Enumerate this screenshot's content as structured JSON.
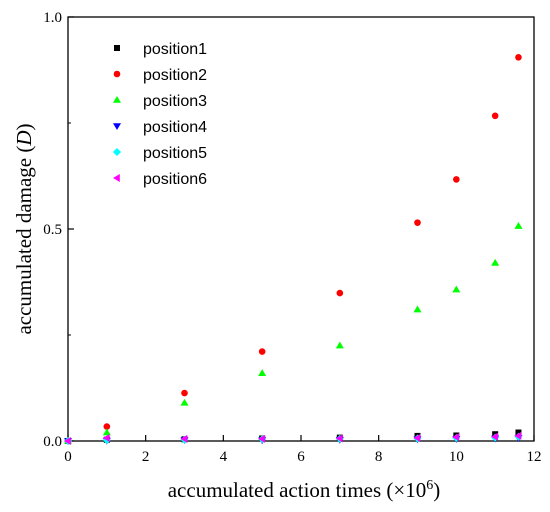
{
  "chart_data": {
    "type": "scatter",
    "xlabel": "accumulated action times (×10",
    "xlabel_exp": "6",
    "xlabel_close": ")",
    "ylabel": "accumulated damage (",
    "ylabel_var": "D",
    "ylabel_close": ")",
    "xlim": [
      0,
      12
    ],
    "ylim": [
      0,
      1.0
    ],
    "xticks": [
      0,
      2,
      4,
      6,
      8,
      10,
      12
    ],
    "xtick_labels": [
      "0",
      "2",
      "4",
      "6",
      "8",
      "10",
      "12"
    ],
    "yticks": [
      0,
      0.5,
      1.0
    ],
    "ytick_labels": [
      "0.0",
      "0.5",
      "1.0"
    ],
    "grid": false,
    "legend_position": "top-left",
    "x": [
      0,
      1,
      3,
      5,
      7,
      9,
      10,
      11,
      11.6
    ],
    "series": [
      {
        "name": "position1",
        "marker": "square",
        "color": "#000000",
        "values": [
          0,
          0.003,
          0.004,
          0.006,
          0.008,
          0.012,
          0.013,
          0.016,
          0.02
        ]
      },
      {
        "name": "position2",
        "marker": "circle",
        "color": "#ff0000",
        "values": [
          0,
          0.034,
          0.113,
          0.211,
          0.349,
          0.515,
          0.617,
          0.767,
          0.905
        ]
      },
      {
        "name": "position3",
        "marker": "triangle-up",
        "color": "#00ff00",
        "values": [
          0,
          0.02,
          0.09,
          0.16,
          0.225,
          0.31,
          0.357,
          0.42,
          0.507
        ]
      },
      {
        "name": "position4",
        "marker": "triangle-down",
        "color": "#0000ff",
        "values": [
          0,
          0.001,
          0.002,
          0.002,
          0.003,
          0.004,
          0.005,
          0.006,
          0.007
        ]
      },
      {
        "name": "position5",
        "marker": "diamond",
        "color": "#00ffff",
        "values": [
          0,
          0.002,
          0.003,
          0.004,
          0.005,
          0.006,
          0.007,
          0.008,
          0.01
        ]
      },
      {
        "name": "position6",
        "marker": "triangle-left",
        "color": "#ff00ff",
        "values": [
          0,
          0.007,
          0.005,
          0.005,
          0.006,
          0.007,
          0.009,
          0.01,
          0.012
        ]
      }
    ]
  }
}
